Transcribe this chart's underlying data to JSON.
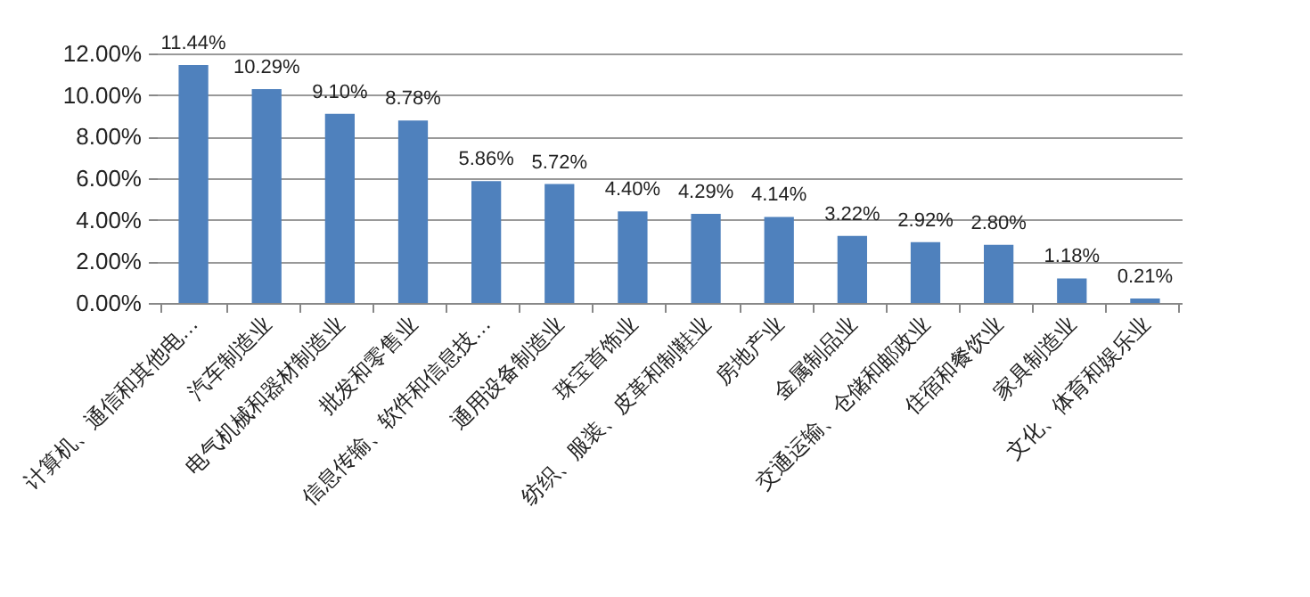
{
  "chart_data": {
    "type": "bar",
    "categories": [
      "计算机、通信和其他电…",
      "汽车制造业",
      "电气机械和器材制造业",
      "批发和零售业",
      "信息传输、软件和信息技…",
      "通用设备制造业",
      "珠宝首饰业",
      "纺织、服装、皮革和制鞋业",
      "房地产业",
      "金属制品业",
      "交通运输、仓储和邮政业",
      "住宿和餐饮业",
      "家具制造业",
      "文化、体育和娱乐业"
    ],
    "values": [
      11.44,
      10.29,
      9.1,
      8.78,
      5.86,
      5.72,
      4.4,
      4.29,
      4.14,
      3.22,
      2.92,
      2.8,
      1.18,
      0.21
    ],
    "value_labels": [
      "11.44%",
      "10.29%",
      "9.10%",
      "8.78%",
      "5.86%",
      "5.72%",
      "4.40%",
      "4.29%",
      "4.14%",
      "3.22%",
      "2.92%",
      "2.80%",
      "1.18%",
      "0.21%"
    ],
    "color": "#4f81bd",
    "ylim": [
      0,
      12
    ],
    "yticks": [
      {
        "value": 0,
        "label": "0.00%"
      },
      {
        "value": 2,
        "label": "2.00%"
      },
      {
        "value": 4,
        "label": "4.00%"
      },
      {
        "value": 6,
        "label": "6.00%"
      },
      {
        "value": 8,
        "label": "8.00%"
      },
      {
        "value": 10,
        "label": "10.00%"
      },
      {
        "value": 12,
        "label": "12.00%"
      }
    ],
    "grid": "y"
  }
}
